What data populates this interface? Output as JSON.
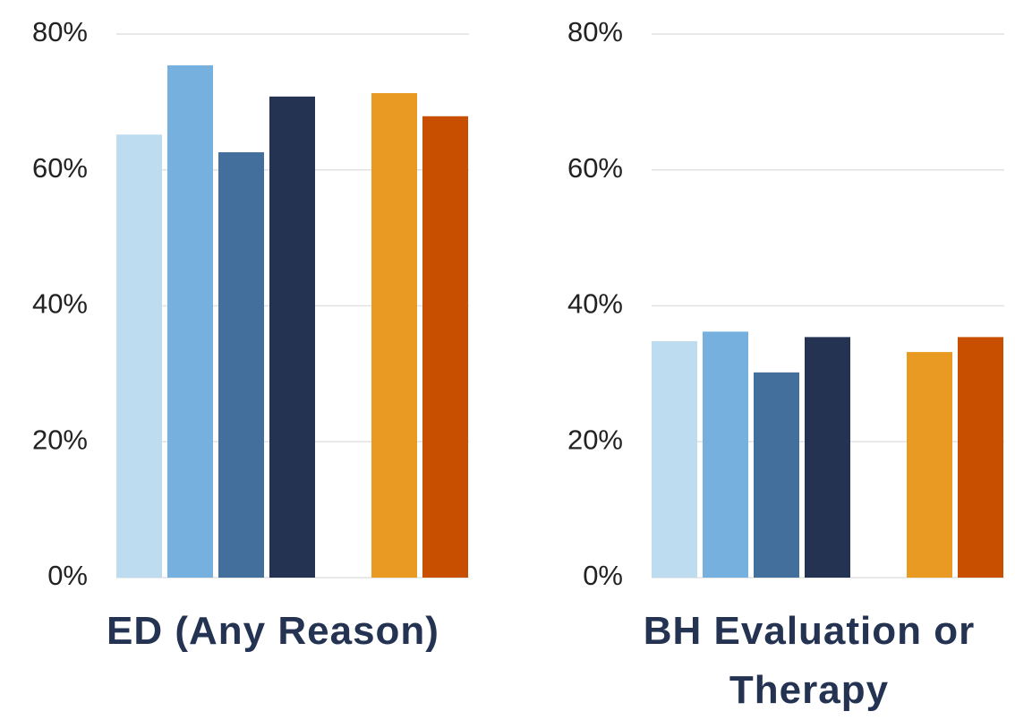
{
  "chart_data": [
    {
      "type": "bar",
      "title": "ED (Any Reason)",
      "values": [
        65.2,
        75.4,
        62.6,
        70.8,
        71.3,
        67.9
      ],
      "colors": [
        "#bddcef",
        "#76b0de",
        "#426f9b",
        "#253352",
        "#e89a23",
        "#c84f00"
      ],
      "ylim": [
        0,
        80
      ],
      "yticks": [
        {
          "value": 0,
          "label": "0%"
        },
        {
          "value": 20,
          "label": "20%"
        },
        {
          "value": 40,
          "label": "40%"
        },
        {
          "value": 60,
          "label": "60%"
        },
        {
          "value": 80,
          "label": "80%"
        }
      ],
      "grid": true
    },
    {
      "type": "bar",
      "title": "BH Evaluation or Therapy",
      "values": [
        34.8,
        36.2,
        30.2,
        35.4,
        33.2,
        35.4
      ],
      "colors": [
        "#bddcef",
        "#76b0de",
        "#426f9b",
        "#253352",
        "#e89a23",
        "#c84f00"
      ],
      "ylim": [
        0,
        80
      ],
      "yticks": [
        {
          "value": 0,
          "label": "0%"
        },
        {
          "value": 20,
          "label": "20%"
        },
        {
          "value": 40,
          "label": "40%"
        },
        {
          "value": 60,
          "label": "60%"
        },
        {
          "value": 80,
          "label": "80%"
        }
      ],
      "grid": true
    }
  ]
}
